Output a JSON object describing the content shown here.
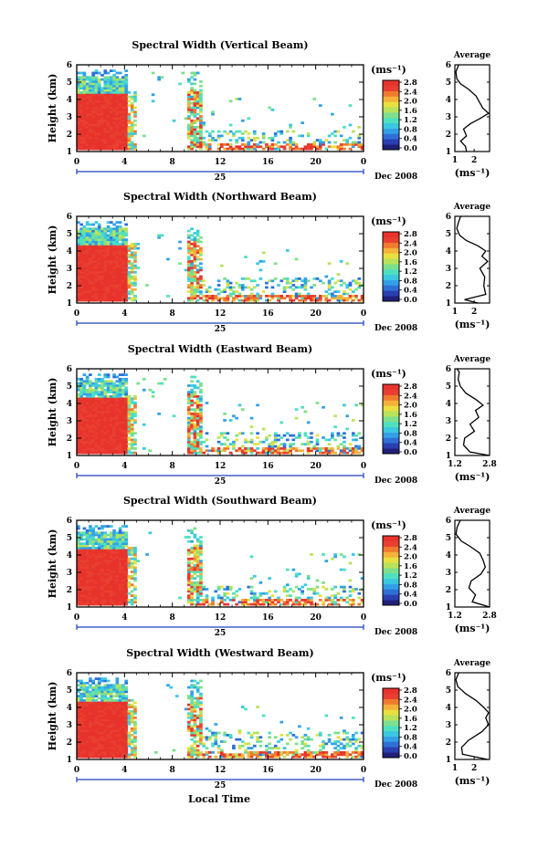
{
  "figure": {
    "x_axis_title": "Local Time",
    "date_left": "25",
    "date_right": "Dec 2008",
    "avg_title": "Average"
  },
  "colorbar_ticks": [
    "0.0",
    "0.4",
    "0.8",
    "1.2",
    "1.6",
    "2.0",
    "2.4",
    "2.8"
  ],
  "colorbar_unit": "(ms⁻¹)",
  "colormap": [
    "#1f1f7a",
    "#2a3fb0",
    "#2f6fd8",
    "#33a0e6",
    "#3cc8e0",
    "#4fe0c0",
    "#7de08a",
    "#b8e35a",
    "#e8e040",
    "#f3b23a",
    "#f07a2e",
    "#e84030",
    "#e8332d"
  ],
  "colors": {
    "hot": "#e8332d",
    "cool": "#2f8fe0",
    "frame": "#000000",
    "date_rule": "#1f3fbf"
  },
  "chart_data": [
    {
      "type": "heatmap",
      "title": "Spectral Width (Vertical Beam)",
      "xlabel": "",
      "ylabel": "Height (km)",
      "x_ticks": [
        "0",
        "4",
        "8",
        "12",
        "16",
        "20",
        "0"
      ],
      "y_ticks": [
        "1",
        "2",
        "3",
        "4",
        "5",
        "6"
      ],
      "xlim": [
        0,
        24
      ],
      "ylim": [
        1,
        6
      ],
      "colorbar": {
        "label": "(ms⁻¹)",
        "range": [
          0,
          2.8
        ]
      },
      "zone_top": 5.3,
      "mid_top": 2.2,
      "average": {
        "xlim": [
          1,
          2.8
        ],
        "x_ticks": [
          "1",
          "2"
        ],
        "xlabel": "(ms⁻¹)",
        "profile": [
          [
            1.6,
            1.0
          ],
          [
            1.55,
            1.3
          ],
          [
            1.3,
            1.6
          ],
          [
            1.6,
            1.9
          ],
          [
            1.45,
            2.3
          ],
          [
            1.8,
            2.6
          ],
          [
            2.3,
            2.9
          ],
          [
            2.75,
            3.2
          ],
          [
            2.45,
            3.5
          ],
          [
            2.3,
            3.8
          ],
          [
            2.1,
            4.2
          ],
          [
            1.7,
            4.6
          ],
          [
            1.3,
            4.9
          ],
          [
            1.1,
            5.2
          ],
          [
            1.05,
            5.6
          ],
          [
            1.2,
            6.0
          ]
        ]
      }
    },
    {
      "type": "heatmap",
      "title": "Spectral Width (Northward Beam)",
      "xlabel": "",
      "ylabel": "Height (km)",
      "x_ticks": [
        "0",
        "4",
        "8",
        "12",
        "16",
        "20",
        "0"
      ],
      "y_ticks": [
        "1",
        "2",
        "3",
        "4",
        "5",
        "6"
      ],
      "xlim": [
        0,
        24
      ],
      "ylim": [
        1,
        6
      ],
      "colorbar": {
        "label": "(ms⁻¹)",
        "range": [
          0,
          2.8
        ]
      },
      "zone_top": 5.3,
      "mid_top": 2.4,
      "average": {
        "xlim": [
          1,
          2.8
        ],
        "x_ticks": [
          "1",
          "2"
        ],
        "xlabel": "(ms⁻¹)",
        "profile": [
          [
            2.2,
            1.0
          ],
          [
            1.5,
            1.2
          ],
          [
            2.6,
            1.5
          ],
          [
            2.5,
            2.0
          ],
          [
            2.55,
            2.5
          ],
          [
            2.3,
            3.0
          ],
          [
            2.7,
            3.4
          ],
          [
            2.4,
            3.7
          ],
          [
            2.6,
            4.0
          ],
          [
            2.2,
            4.3
          ],
          [
            1.6,
            4.6
          ],
          [
            1.25,
            4.9
          ],
          [
            1.1,
            5.3
          ],
          [
            1.2,
            5.7
          ],
          [
            1.3,
            6.0
          ]
        ]
      }
    },
    {
      "type": "heatmap",
      "title": "Spectral Width (Eastward Beam)",
      "xlabel": "",
      "ylabel": "Height (km)",
      "x_ticks": [
        "0",
        "4",
        "8",
        "12",
        "16",
        "20",
        "0"
      ],
      "y_ticks": [
        "1",
        "2",
        "3",
        "4",
        "5",
        "6"
      ],
      "xlim": [
        0,
        24
      ],
      "ylim": [
        1,
        6
      ],
      "colorbar": {
        "label": "(ms⁻¹)",
        "range": [
          0,
          2.8
        ]
      },
      "zone_top": 5.3,
      "mid_top": 2.3,
      "average": {
        "xlim": [
          1.2,
          2.8
        ],
        "x_ticks": [
          "1.2",
          "2.8"
        ],
        "xlabel": "(ms⁻¹)",
        "profile": [
          [
            2.8,
            1.0
          ],
          [
            1.9,
            1.2
          ],
          [
            1.6,
            1.6
          ],
          [
            1.65,
            2.0
          ],
          [
            2.1,
            2.4
          ],
          [
            1.9,
            2.8
          ],
          [
            2.3,
            3.2
          ],
          [
            2.15,
            3.6
          ],
          [
            2.5,
            3.9
          ],
          [
            2.2,
            4.2
          ],
          [
            1.7,
            4.6
          ],
          [
            1.45,
            5.0
          ],
          [
            1.35,
            5.4
          ],
          [
            1.4,
            5.8
          ],
          [
            1.3,
            6.0
          ]
        ]
      }
    },
    {
      "type": "heatmap",
      "title": "Spectral Width (Southward Beam)",
      "xlabel": "",
      "ylabel": "Height (km)",
      "x_ticks": [
        "0",
        "4",
        "8",
        "12",
        "16",
        "20",
        "0"
      ],
      "y_ticks": [
        "1",
        "2",
        "3",
        "4",
        "5",
        "6"
      ],
      "xlim": [
        0,
        24
      ],
      "ylim": [
        1,
        6
      ],
      "colorbar": {
        "label": "(ms⁻¹)",
        "range": [
          0,
          2.8
        ]
      },
      "zone_top": 5.3,
      "mid_top": 2.2,
      "average": {
        "xlim": [
          1.2,
          2.8
        ],
        "x_ticks": [
          "1.2",
          "2.8"
        ],
        "xlabel": "(ms⁻¹)",
        "profile": [
          [
            2.8,
            1.0
          ],
          [
            2.0,
            1.3
          ],
          [
            2.15,
            1.7
          ],
          [
            1.85,
            2.1
          ],
          [
            1.95,
            2.5
          ],
          [
            2.4,
            2.9
          ],
          [
            2.6,
            3.3
          ],
          [
            2.5,
            3.7
          ],
          [
            2.35,
            4.1
          ],
          [
            1.9,
            4.5
          ],
          [
            1.5,
            4.8
          ],
          [
            1.25,
            5.2
          ],
          [
            1.3,
            5.6
          ],
          [
            1.45,
            6.0
          ]
        ]
      }
    },
    {
      "type": "heatmap",
      "title": "Spectral Width (Westward Beam)",
      "xlabel": "Local Time",
      "ylabel": "Height (km)",
      "x_ticks": [
        "0",
        "4",
        "8",
        "12",
        "16",
        "20",
        "0"
      ],
      "y_ticks": [
        "1",
        "2",
        "3",
        "4",
        "5",
        "6"
      ],
      "xlim": [
        0,
        24
      ],
      "ylim": [
        1,
        6
      ],
      "colorbar": {
        "label": "(ms⁻¹)",
        "range": [
          0,
          2.8
        ]
      },
      "zone_top": 5.3,
      "mid_top": 2.5,
      "average": {
        "xlim": [
          1,
          2.8
        ],
        "x_ticks": [
          "1",
          "2"
        ],
        "xlabel": "(ms⁻¹)",
        "profile": [
          [
            2.7,
            1.0
          ],
          [
            1.4,
            1.3
          ],
          [
            1.35,
            1.7
          ],
          [
            1.7,
            2.1
          ],
          [
            2.4,
            2.6
          ],
          [
            2.75,
            3.0
          ],
          [
            2.6,
            3.4
          ],
          [
            2.75,
            3.7
          ],
          [
            2.5,
            4.0
          ],
          [
            2.1,
            4.4
          ],
          [
            1.55,
            4.8
          ],
          [
            1.15,
            5.2
          ],
          [
            1.05,
            5.6
          ],
          [
            1.2,
            6.0
          ]
        ]
      }
    }
  ]
}
